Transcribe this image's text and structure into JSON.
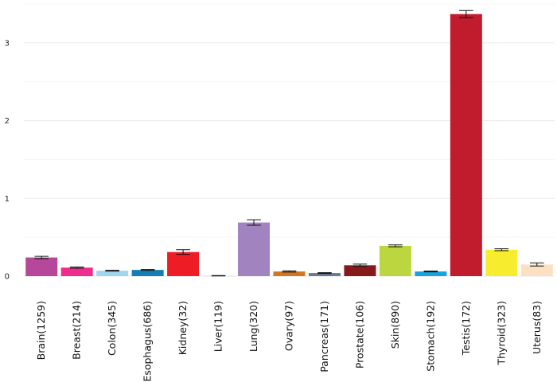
{
  "chart_data": {
    "type": "bar",
    "title": "",
    "xlabel": "",
    "ylabel": "",
    "ylim": [
      0,
      3.5
    ],
    "yticks": [
      0,
      1,
      2,
      3
    ],
    "grid": true,
    "legend": "none",
    "categories": [
      "Brain(1259)",
      "Breast(214)",
      "Colon(345)",
      "Esophagus(686)",
      "Kidney(32)",
      "Liver(119)",
      "Lung(320)",
      "Ovary(97)",
      "Pancreas(171)",
      "Prostate(106)",
      "Skin(890)",
      "Stomach(192)",
      "Testis(172)",
      "Thyroid(323)",
      "Uterus(83)"
    ],
    "values": [
      0.24,
      0.11,
      0.07,
      0.08,
      0.31,
      0.005,
      0.69,
      0.06,
      0.04,
      0.14,
      0.39,
      0.06,
      3.37,
      0.34,
      0.15
    ],
    "errors": [
      0.015,
      0.008,
      0.006,
      0.006,
      0.03,
      0.003,
      0.035,
      0.008,
      0.005,
      0.015,
      0.012,
      0.005,
      0.045,
      0.012,
      0.02
    ],
    "colors": [
      "#b5489a",
      "#ef2d8c",
      "#9fd6ef",
      "#147db3",
      "#ee1c25",
      "#d9d9d9",
      "#a183bf",
      "#d3771e",
      "#6b7a93",
      "#861a1a",
      "#bcd640",
      "#14a4de",
      "#c01c2e",
      "#f7ec2e",
      "#fbe0c4"
    ]
  }
}
